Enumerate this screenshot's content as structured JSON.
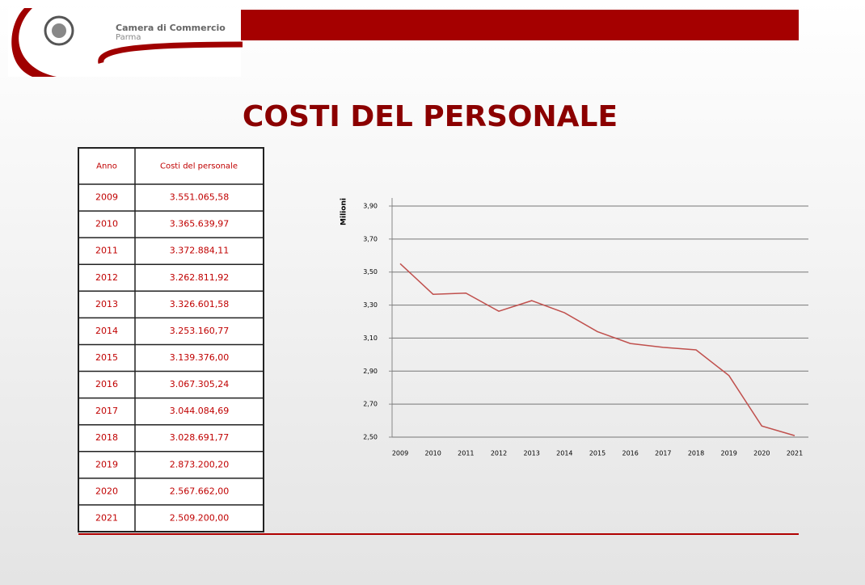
{
  "header": {
    "org_line1": "Camera di Commercio",
    "org_line2": "Parma"
  },
  "title": "COSTI DEL PERSONALE",
  "table": {
    "columns": [
      "Anno",
      "Costi del personale"
    ],
    "rows": [
      [
        "2009",
        "3.551.065,58"
      ],
      [
        "2010",
        "3.365.639,97"
      ],
      [
        "2011",
        "3.372.884,11"
      ],
      [
        "2012",
        "3.262.811,92"
      ],
      [
        "2013",
        "3.326.601,58"
      ],
      [
        "2014",
        "3.253.160,77"
      ],
      [
        "2015",
        "3.139.376,00"
      ],
      [
        "2016",
        "3.067.305,24"
      ],
      [
        "2017",
        "3.044.084,69"
      ],
      [
        "2018",
        "3.028.691,77"
      ],
      [
        "2019",
        "2.873.200,20"
      ],
      [
        "2020",
        "2.567.662,00"
      ],
      [
        "2021",
        "2.509.200,00"
      ]
    ]
  },
  "chart_data": {
    "type": "line",
    "y_label": "Milioni",
    "categories": [
      "2009",
      "2010",
      "2011",
      "2012",
      "2013",
      "2014",
      "2015",
      "2016",
      "2017",
      "2018",
      "2019",
      "2020",
      "2021"
    ],
    "values": [
      3.55106558,
      3.36563997,
      3.37288411,
      3.26281192,
      3.32660158,
      3.25316077,
      3.139376,
      3.06730524,
      3.04408469,
      3.02869177,
      2.8732002,
      2.567662,
      2.5092
    ],
    "color": "#c0504d",
    "ylim": [
      2.5,
      3.9
    ],
    "yticks": [
      {
        "value": 2.5,
        "label": "2,50"
      },
      {
        "value": 2.7,
        "label": "2,70"
      },
      {
        "value": 2.9,
        "label": "2,90"
      },
      {
        "value": 3.1,
        "label": "3,10"
      },
      {
        "value": 3.3,
        "label": "3,30"
      },
      {
        "value": 3.5,
        "label": "3,50"
      },
      {
        "value": 3.7,
        "label": "3,70"
      },
      {
        "value": 3.9,
        "label": "3,90"
      }
    ],
    "grid": true
  }
}
